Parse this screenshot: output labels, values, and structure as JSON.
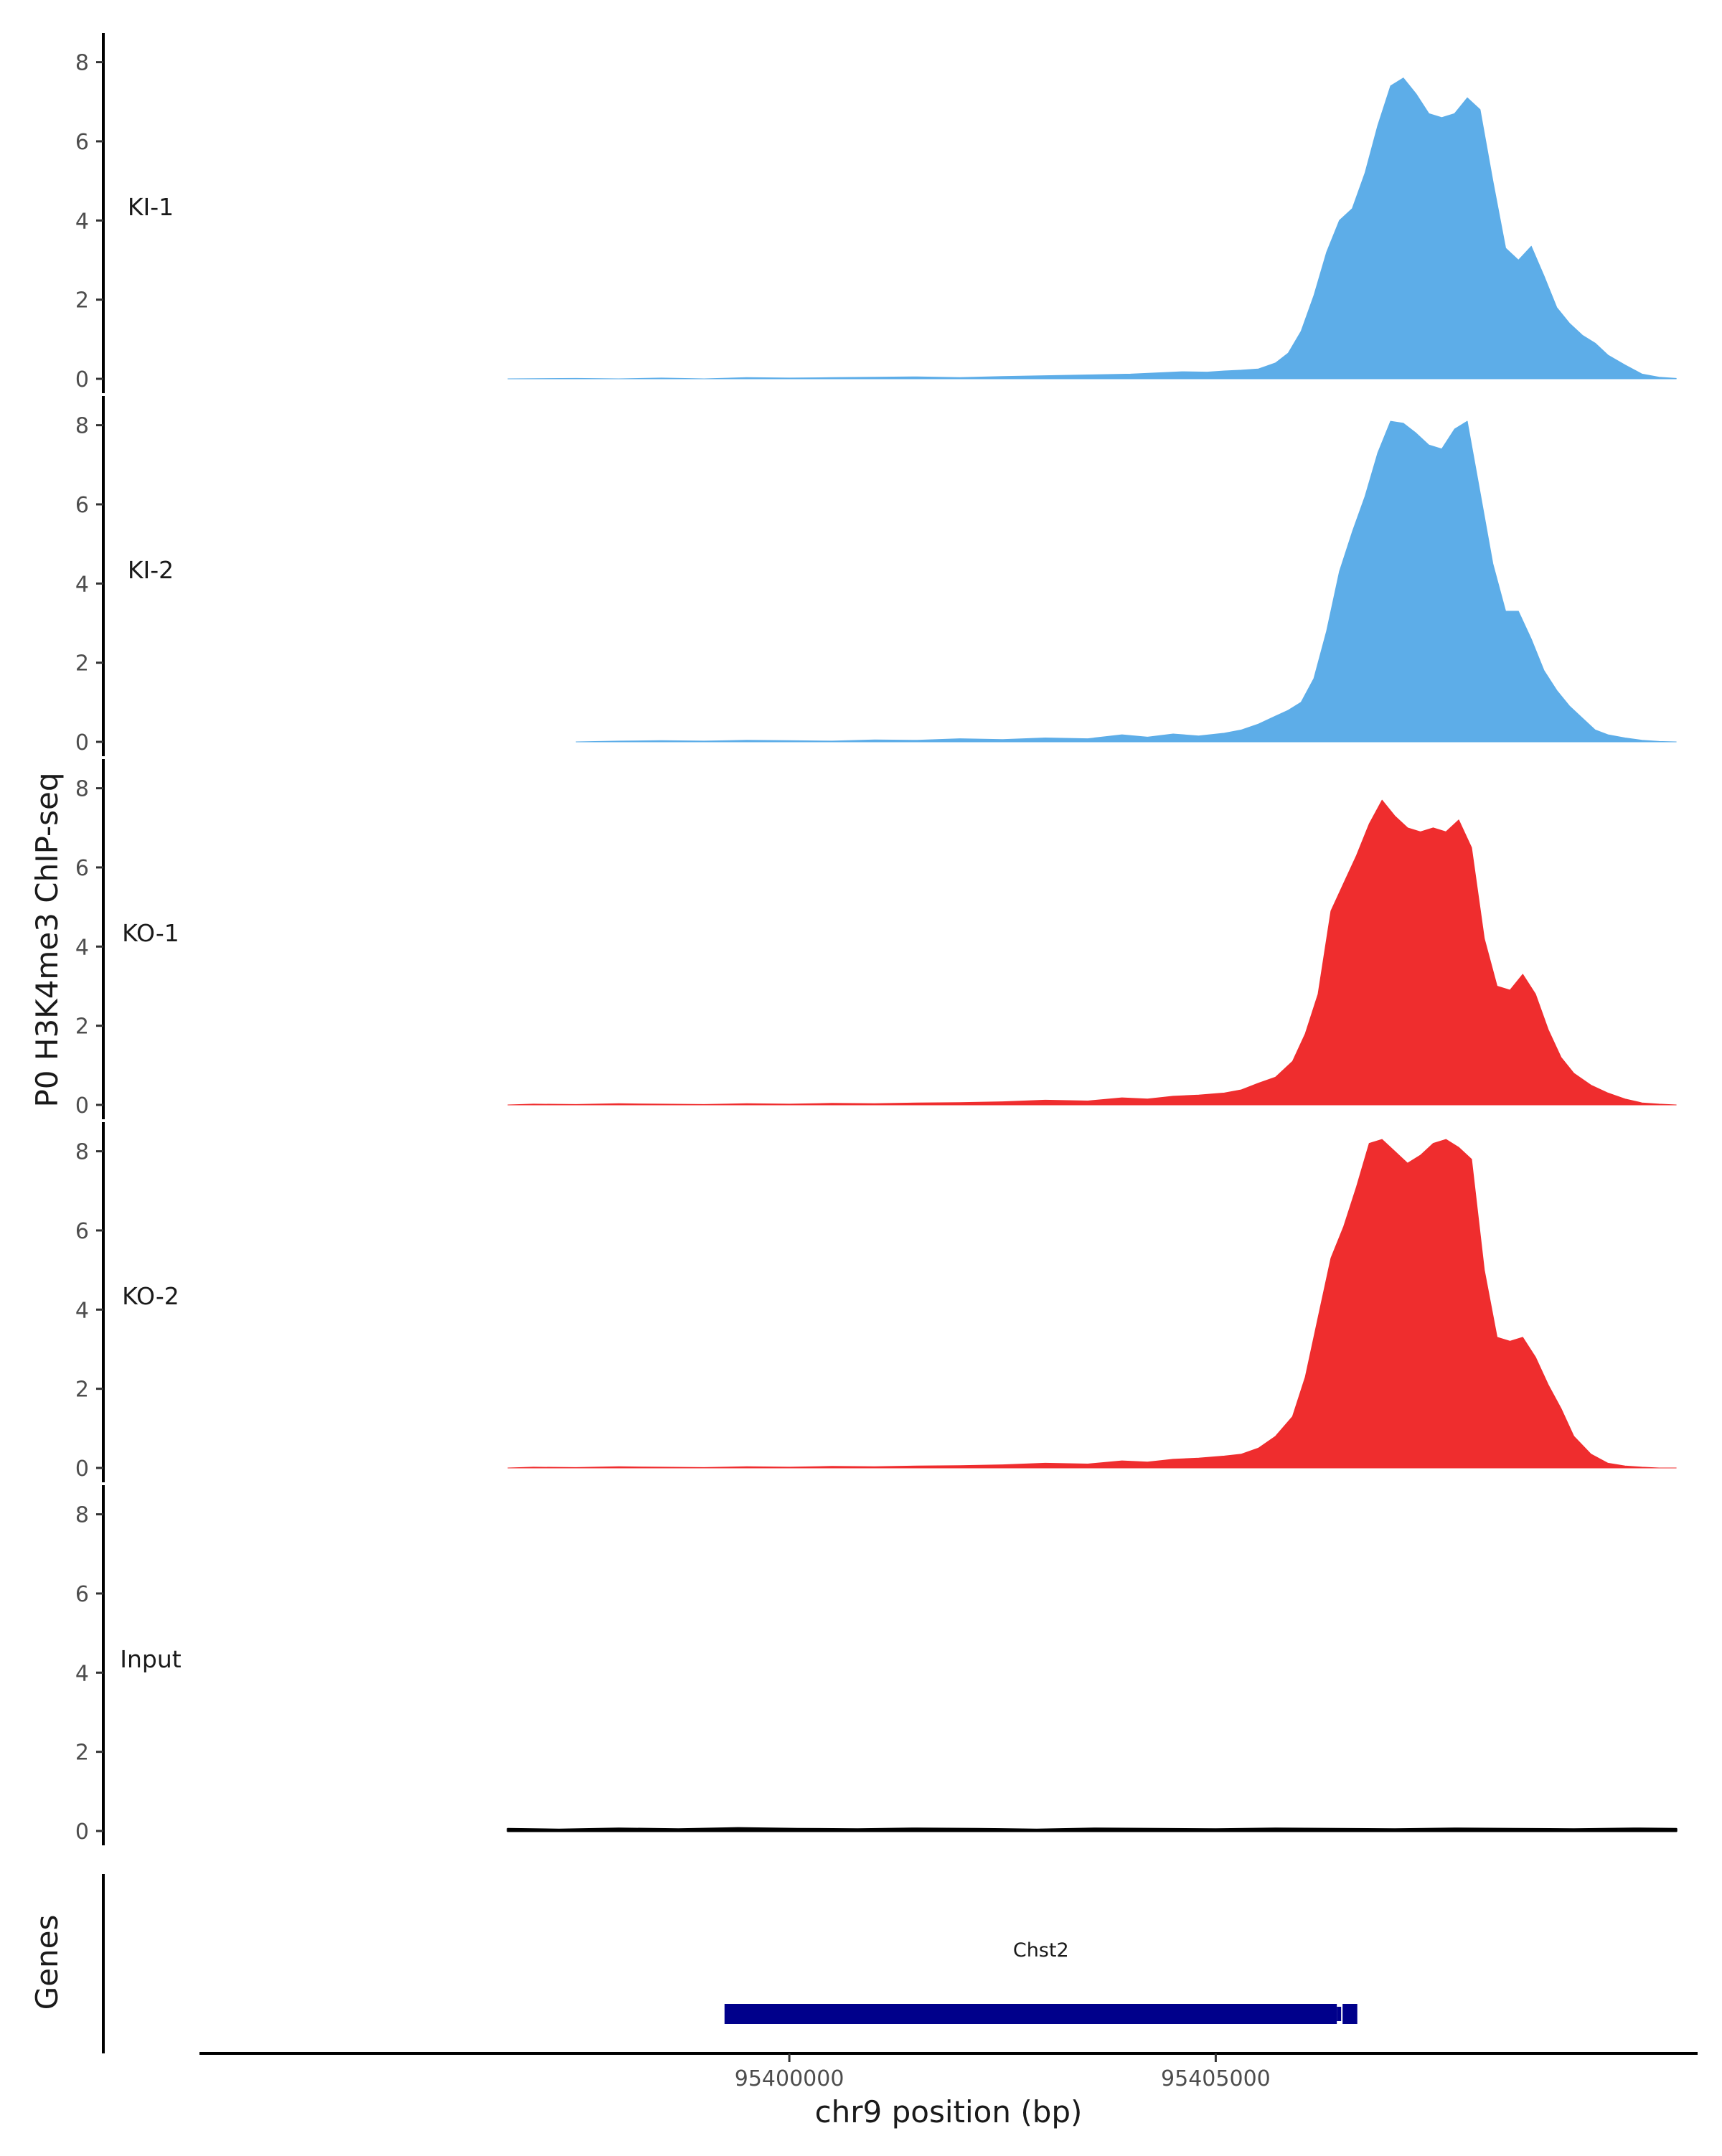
{
  "chart_data": {
    "type": "area",
    "ylabel": "P0 H3K4me3 ChIP-seq",
    "xlabel": "chr9 position (bp)",
    "xlim": [
      95393100,
      95410600
    ],
    "ylim": [
      0,
      8.7
    ],
    "y_ticks": [
      0,
      2,
      4,
      6,
      8
    ],
    "x_ticks": [
      95400000,
      95405000
    ],
    "grid": false,
    "legend": "none",
    "colors": {
      "KI": "#5dade8",
      "KO": "#ef2d2e",
      "Input": "#000000",
      "gene": "#00008b"
    },
    "tracks": [
      {
        "name": "KI-1",
        "color": "#5dade8",
        "x": [
          95396700,
          95397500,
          95398000,
          95398500,
          95399000,
          95399500,
          95400000,
          95400500,
          95401000,
          95401500,
          95402000,
          95402500,
          95403000,
          95403500,
          95404000,
          95404300,
          95404600,
          95404900,
          95405100,
          95405300,
          95405500,
          95405700,
          95405850,
          95406000,
          95406150,
          95406300,
          95406450,
          95406600,
          95406750,
          95406900,
          95407050,
          95407200,
          95407350,
          95407500,
          95407650,
          95407800,
          95407950,
          95408100,
          95408250,
          95408400,
          95408550,
          95408700,
          95408850,
          95409000,
          95409150,
          95409300,
          95409450,
          95409600,
          95409800,
          95410000,
          95410200,
          95410400
        ],
        "values": [
          0.0,
          0.01,
          0.0,
          0.02,
          0.0,
          0.03,
          0.02,
          0.03,
          0.04,
          0.05,
          0.03,
          0.06,
          0.08,
          0.1,
          0.12,
          0.15,
          0.18,
          0.17,
          0.2,
          0.22,
          0.25,
          0.4,
          0.65,
          1.2,
          2.1,
          3.2,
          4.0,
          4.3,
          5.2,
          6.4,
          7.4,
          7.6,
          7.2,
          6.7,
          6.6,
          6.7,
          7.1,
          6.8,
          5.0,
          3.3,
          3.0,
          3.35,
          2.6,
          1.8,
          1.4,
          1.1,
          0.9,
          0.6,
          0.35,
          0.12,
          0.04,
          0.01
        ]
      },
      {
        "name": "KI-2",
        "color": "#5dade8",
        "x": [
          95397500,
          95398000,
          95398500,
          95399000,
          95399500,
          95400000,
          95400500,
          95401000,
          95401500,
          95402000,
          95402500,
          95403000,
          95403500,
          95403900,
          95404200,
          95404500,
          95404800,
          95405100,
          95405300,
          95405500,
          95405700,
          95405850,
          95406000,
          95406150,
          95406300,
          95406450,
          95406600,
          95406750,
          95406900,
          95407050,
          95407200,
          95407350,
          95407500,
          95407650,
          95407800,
          95407950,
          95408100,
          95408250,
          95408400,
          95408550,
          95408700,
          95408850,
          95409000,
          95409150,
          95409300,
          95409450,
          95409600,
          95409800,
          95410000,
          95410200,
          95410400
        ],
        "values": [
          0.0,
          0.02,
          0.03,
          0.02,
          0.04,
          0.03,
          0.02,
          0.05,
          0.04,
          0.08,
          0.06,
          0.1,
          0.08,
          0.18,
          0.12,
          0.2,
          0.15,
          0.22,
          0.3,
          0.45,
          0.65,
          0.8,
          1.0,
          1.6,
          2.8,
          4.3,
          5.3,
          6.2,
          7.3,
          8.1,
          8.05,
          7.8,
          7.5,
          7.4,
          7.9,
          8.1,
          6.3,
          4.5,
          3.3,
          3.3,
          2.6,
          1.8,
          1.3,
          0.9,
          0.6,
          0.3,
          0.18,
          0.1,
          0.04,
          0.01,
          0.0
        ]
      },
      {
        "name": "KO-1",
        "color": "#ef2d2e",
        "x": [
          95396700,
          95397000,
          95397500,
          95398000,
          95398500,
          95399000,
          95399500,
          95400000,
          95400500,
          95401000,
          95401500,
          95402000,
          95402500,
          95403000,
          95403500,
          95403900,
          95404200,
          95404500,
          95404800,
          95405100,
          95405300,
          95405500,
          95405700,
          95405900,
          95406050,
          95406200,
          95406350,
          95406500,
          95406650,
          95406800,
          95406950,
          95407100,
          95407250,
          95407400,
          95407550,
          95407700,
          95407850,
          95408000,
          95408150,
          95408300,
          95408450,
          95408600,
          95408750,
          95408900,
          95409050,
          95409200,
          95409400,
          95409600,
          95409800,
          95410000,
          95410200,
          95410400
        ],
        "values": [
          0.0,
          0.02,
          0.01,
          0.03,
          0.02,
          0.01,
          0.03,
          0.02,
          0.04,
          0.03,
          0.05,
          0.06,
          0.08,
          0.12,
          0.1,
          0.18,
          0.15,
          0.22,
          0.25,
          0.3,
          0.38,
          0.55,
          0.7,
          1.1,
          1.8,
          2.8,
          4.9,
          5.6,
          6.3,
          7.1,
          7.7,
          7.3,
          7.0,
          6.9,
          7.0,
          6.9,
          7.2,
          6.5,
          4.2,
          3.0,
          2.9,
          3.3,
          2.8,
          1.9,
          1.2,
          0.8,
          0.5,
          0.3,
          0.15,
          0.05,
          0.02,
          0.0
        ]
      },
      {
        "name": "KO-2",
        "color": "#ef2d2e",
        "x": [
          95396700,
          95397000,
          95397500,
          95398000,
          95398500,
          95399000,
          95399500,
          95400000,
          95400500,
          95401000,
          95401500,
          95402000,
          95402500,
          95403000,
          95403500,
          95403900,
          95404200,
          95404500,
          95404800,
          95405100,
          95405300,
          95405500,
          95405700,
          95405900,
          95406050,
          95406200,
          95406350,
          95406500,
          95406650,
          95406800,
          95406950,
          95407100,
          95407250,
          95407400,
          95407550,
          95407700,
          95407850,
          95408000,
          95408150,
          95408300,
          95408450,
          95408600,
          95408750,
          95408900,
          95409050,
          95409200,
          95409400,
          95409600,
          95409800,
          95410000,
          95410200,
          95410400
        ],
        "values": [
          0.0,
          0.02,
          0.01,
          0.03,
          0.02,
          0.01,
          0.03,
          0.02,
          0.04,
          0.03,
          0.05,
          0.06,
          0.08,
          0.12,
          0.1,
          0.18,
          0.15,
          0.22,
          0.25,
          0.3,
          0.35,
          0.5,
          0.8,
          1.3,
          2.3,
          3.8,
          5.3,
          6.1,
          7.1,
          8.2,
          8.3,
          8.0,
          7.7,
          7.9,
          8.2,
          8.3,
          8.1,
          7.8,
          5.0,
          3.3,
          3.2,
          3.3,
          2.8,
          2.1,
          1.5,
          0.8,
          0.35,
          0.12,
          0.05,
          0.02,
          0.0,
          0.0
        ]
      },
      {
        "name": "Input",
        "color": "#000000",
        "x": [
          95396700,
          95397300,
          95398000,
          95398700,
          95399400,
          95400100,
          95400800,
          95401500,
          95402200,
          95402900,
          95403600,
          95404300,
          95405000,
          95405700,
          95406400,
          95407100,
          95407800,
          95408500,
          95409200,
          95409900,
          95410400
        ],
        "values": [
          0.05,
          0.03,
          0.06,
          0.04,
          0.07,
          0.05,
          0.04,
          0.06,
          0.05,
          0.03,
          0.06,
          0.05,
          0.04,
          0.06,
          0.05,
          0.04,
          0.06,
          0.05,
          0.04,
          0.06,
          0.05
        ]
      }
    ],
    "genes": [
      {
        "name": "Chst2",
        "start": 95399240,
        "end": 95406660,
        "utr_start": 95406420
      }
    ]
  },
  "genes_title": "Genes"
}
